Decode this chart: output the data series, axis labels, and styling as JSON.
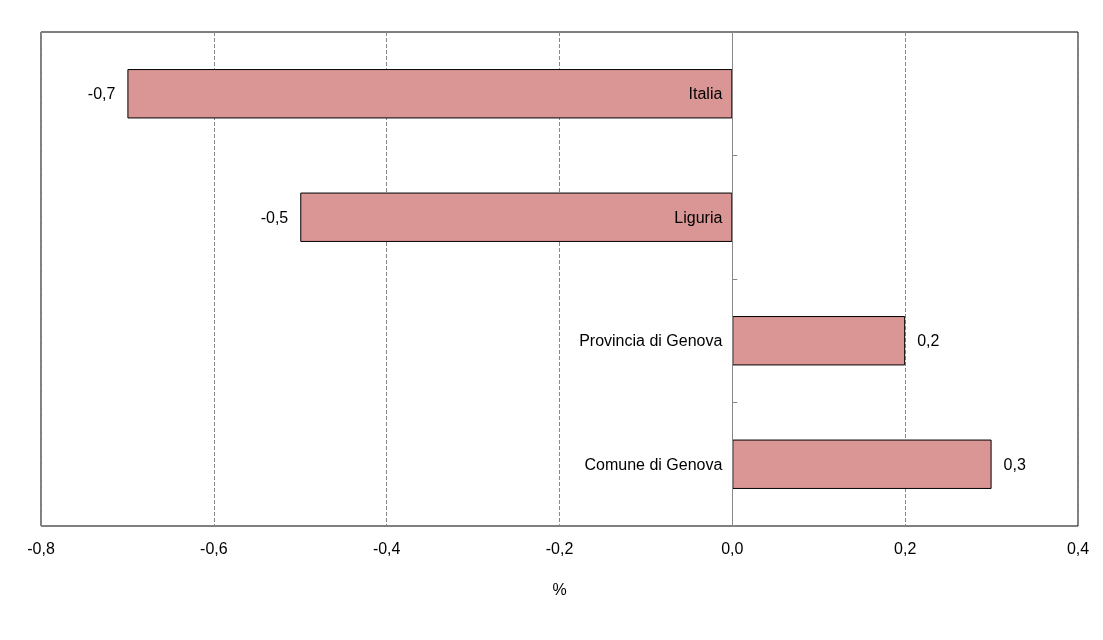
{
  "chart_data": {
    "type": "bar",
    "orientation": "horizontal",
    "xlabel": "%",
    "categories": [
      "Italia",
      "Liguria",
      "Provincia di Genova",
      "Comune di Genova"
    ],
    "values": [
      -0.7,
      -0.5,
      0.2,
      0.3
    ],
    "value_labels": [
      "-0,7",
      "-0,5",
      "0,2",
      "0,3"
    ],
    "color": "#d99694",
    "xlim": [
      -0.8,
      0.4
    ],
    "xticks": [
      {
        "value": -0.8,
        "label": "-0,8"
      },
      {
        "value": -0.6,
        "label": "-0,6"
      },
      {
        "value": -0.4,
        "label": "-0,4"
      },
      {
        "value": -0.2,
        "label": "-0,2"
      },
      {
        "value": 0,
        "label": "0,0"
      },
      {
        "value": 0.2,
        "label": "0,2"
      },
      {
        "value": 0.4,
        "label": "0,4"
      }
    ],
    "grid": "x"
  }
}
